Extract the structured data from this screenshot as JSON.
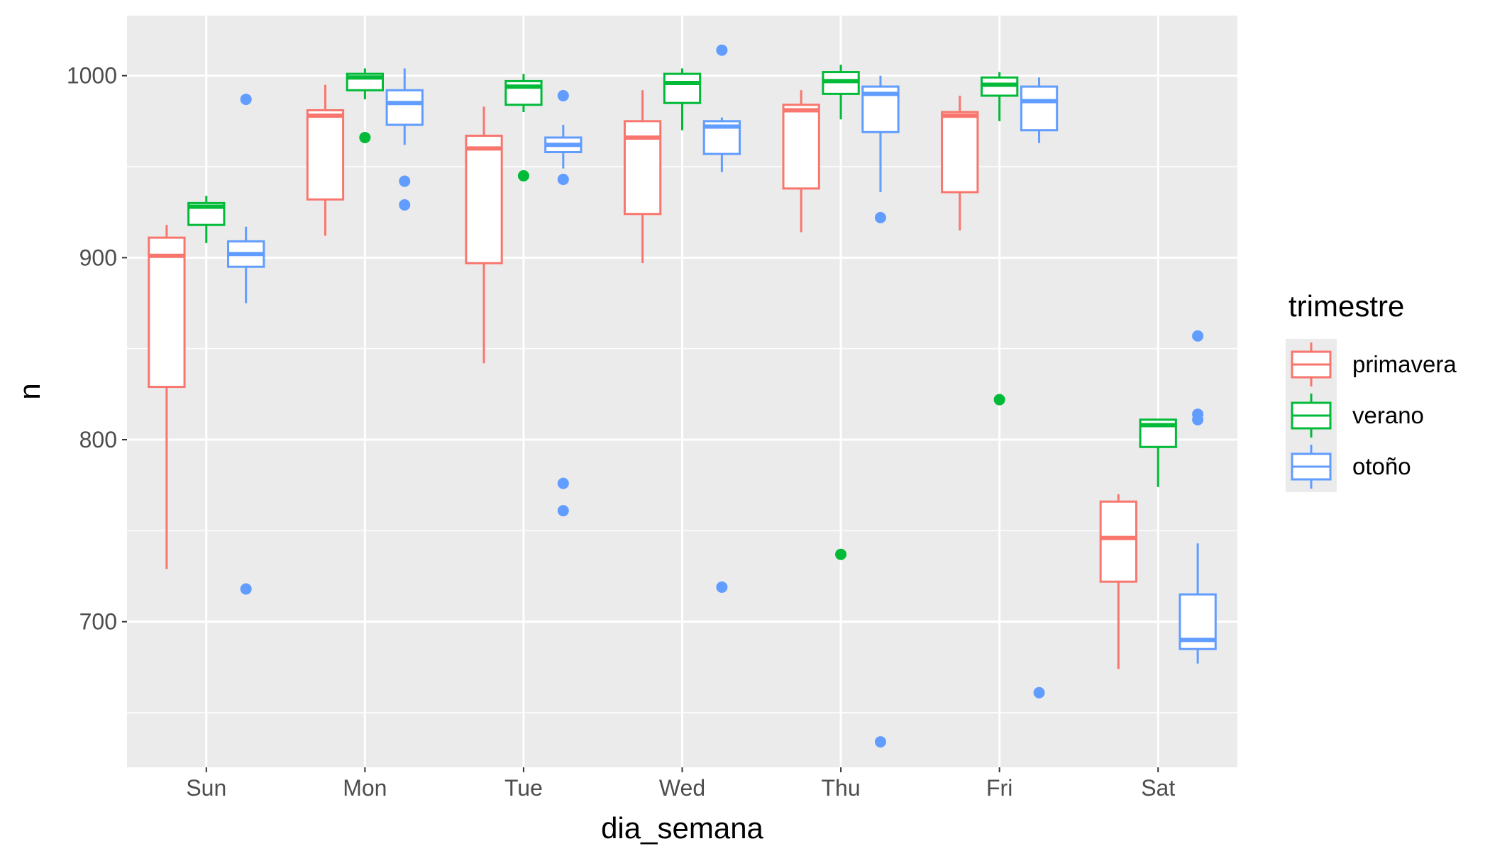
{
  "chart_data": {
    "type": "boxplot",
    "xlabel": "dia_semana",
    "ylabel": "n",
    "categories": [
      "Sun",
      "Mon",
      "Tue",
      "Wed",
      "Thu",
      "Fri",
      "Sat"
    ],
    "ylim": [
      620,
      1033
    ],
    "yticks": [
      700,
      800,
      900,
      1000
    ],
    "y_minor_ticks": [
      650,
      750,
      850,
      950
    ],
    "grid": true,
    "legend": {
      "title": "trimestre",
      "position": "right",
      "entries": [
        "primavera",
        "verano",
        "otoño"
      ]
    },
    "colors": {
      "primavera": "#F8766D",
      "verano": "#00BA38",
      "otoño": "#619CFF",
      "panel": "#EBEBEB",
      "grid": "#FFFFFF"
    },
    "series": [
      {
        "name": "primavera",
        "boxes": [
          {
            "category": "Sun",
            "lower_whisker": 729,
            "q1": 829,
            "median": 901,
            "q3": 911,
            "upper_whisker": 918,
            "outliers": []
          },
          {
            "category": "Mon",
            "lower_whisker": 912,
            "q1": 932,
            "median": 978,
            "q3": 981,
            "upper_whisker": 995,
            "outliers": []
          },
          {
            "category": "Tue",
            "lower_whisker": 842,
            "q1": 897,
            "median": 960,
            "q3": 967,
            "upper_whisker": 983,
            "outliers": []
          },
          {
            "category": "Wed",
            "lower_whisker": 897,
            "q1": 924,
            "median": 966,
            "q3": 975,
            "upper_whisker": 992,
            "outliers": []
          },
          {
            "category": "Thu",
            "lower_whisker": 914,
            "q1": 938,
            "median": 981,
            "q3": 984,
            "upper_whisker": 992,
            "outliers": []
          },
          {
            "category": "Fri",
            "lower_whisker": 915,
            "q1": 936,
            "median": 978,
            "q3": 980,
            "upper_whisker": 989,
            "outliers": []
          },
          {
            "category": "Sat",
            "lower_whisker": 674,
            "q1": 722,
            "median": 746,
            "q3": 766,
            "upper_whisker": 770,
            "outliers": []
          }
        ]
      },
      {
        "name": "verano",
        "boxes": [
          {
            "category": "Sun",
            "lower_whisker": 908,
            "q1": 918,
            "median": 928,
            "q3": 930,
            "upper_whisker": 934,
            "outliers": []
          },
          {
            "category": "Mon",
            "lower_whisker": 987,
            "q1": 992,
            "median": 999,
            "q3": 1001,
            "upper_whisker": 1004,
            "outliers": [
              966
            ]
          },
          {
            "category": "Tue",
            "lower_whisker": 980,
            "q1": 984,
            "median": 994,
            "q3": 997,
            "upper_whisker": 1001,
            "outliers": [
              945
            ]
          },
          {
            "category": "Wed",
            "lower_whisker": 970,
            "q1": 985,
            "median": 996,
            "q3": 1001,
            "upper_whisker": 1004,
            "outliers": []
          },
          {
            "category": "Thu",
            "lower_whisker": 976,
            "q1": 990,
            "median": 997,
            "q3": 1002,
            "upper_whisker": 1006,
            "outliers": [
              737
            ]
          },
          {
            "category": "Fri",
            "lower_whisker": 975,
            "q1": 989,
            "median": 995,
            "q3": 999,
            "upper_whisker": 1002,
            "outliers": [
              822
            ]
          },
          {
            "category": "Sat",
            "lower_whisker": 774,
            "q1": 796,
            "median": 808,
            "q3": 811,
            "upper_whisker": 811,
            "outliers": []
          }
        ]
      },
      {
        "name": "otoño",
        "boxes": [
          {
            "category": "Sun",
            "lower_whisker": 875,
            "q1": 895,
            "median": 902,
            "q3": 909,
            "upper_whisker": 917,
            "outliers": [
              987,
              718
            ]
          },
          {
            "category": "Mon",
            "lower_whisker": 962,
            "q1": 973,
            "median": 985,
            "q3": 992,
            "upper_whisker": 1004,
            "outliers": [
              942,
              929
            ]
          },
          {
            "category": "Tue",
            "lower_whisker": 949,
            "q1": 958,
            "median": 962,
            "q3": 966,
            "upper_whisker": 973,
            "outliers": [
              989,
              943,
              776,
              761
            ]
          },
          {
            "category": "Wed",
            "lower_whisker": 947,
            "q1": 957,
            "median": 972,
            "q3": 975,
            "upper_whisker": 977,
            "outliers": [
              1014,
              719
            ]
          },
          {
            "category": "Thu",
            "lower_whisker": 936,
            "q1": 969,
            "median": 990,
            "q3": 994,
            "upper_whisker": 1000,
            "outliers": [
              922,
              634
            ]
          },
          {
            "category": "Fri",
            "lower_whisker": 963,
            "q1": 970,
            "median": 986,
            "q3": 994,
            "upper_whisker": 999,
            "outliers": [
              661
            ]
          },
          {
            "category": "Sat",
            "lower_whisker": 677,
            "q1": 685,
            "median": 690,
            "q3": 715,
            "upper_whisker": 743,
            "outliers": [
              857,
              814,
              811
            ]
          }
        ]
      }
    ]
  }
}
